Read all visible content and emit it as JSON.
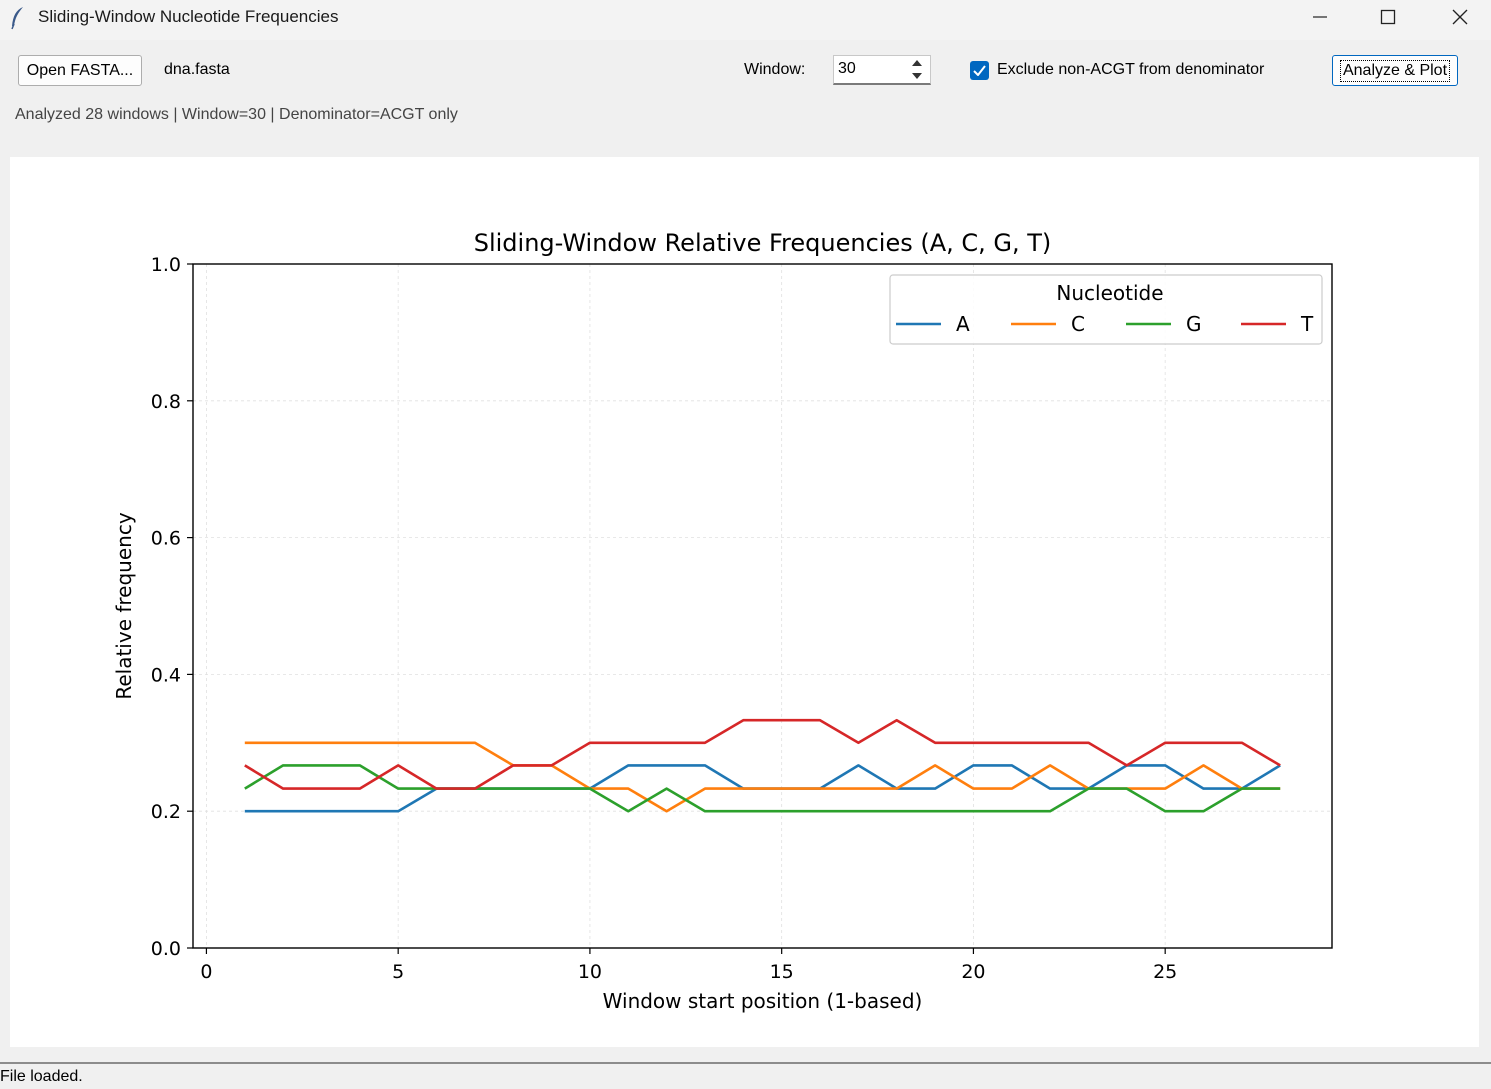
{
  "window": {
    "title": "Sliding-Window Nucleotide Frequencies",
    "minimize_glyph": "—",
    "maximize_glyph": "☐",
    "close_glyph": "✕"
  },
  "toolbar": {
    "open_label": "Open FASTA...",
    "filename": "dna.fasta",
    "window_label": "Window:",
    "window_value": "30",
    "exclude_checked": true,
    "exclude_label": "Exclude non-ACGT from denominator",
    "analyze_label": "Analyze & Plot",
    "accent_color": "#0067c0"
  },
  "status_line": "Analyzed 28 windows | Window=30 | Denominator=ACGT only",
  "statusbar_text": "File loaded.",
  "chart_data": {
    "type": "line",
    "title": "Sliding-Window Relative Frequencies (A, C, G, T)",
    "xlabel": "Window start position (1-based)",
    "ylabel": "Relative frequency",
    "xlim": [
      -0.35,
      29.35
    ],
    "ylim": [
      0,
      1
    ],
    "xticks": [
      0,
      5,
      10,
      15,
      20,
      25
    ],
    "yticks": [
      0.0,
      0.2,
      0.4,
      0.6,
      0.8,
      1.0
    ],
    "ytick_labels": [
      "0.0",
      "0.2",
      "0.4",
      "0.6",
      "0.8",
      "1.0"
    ],
    "grid": true,
    "legend": {
      "title": "Nucleotide",
      "placement": "top-right",
      "columns": 4
    },
    "x": [
      1,
      2,
      3,
      4,
      5,
      6,
      7,
      8,
      9,
      10,
      11,
      12,
      13,
      14,
      15,
      16,
      17,
      18,
      19,
      20,
      21,
      22,
      23,
      24,
      25,
      26,
      27,
      28
    ],
    "series": [
      {
        "name": "A",
        "color": "#1f77b4",
        "values": [
          0.2,
          0.2,
          0.2,
          0.2,
          0.2,
          0.233,
          0.233,
          0.233,
          0.233,
          0.233,
          0.267,
          0.267,
          0.267,
          0.233,
          0.233,
          0.233,
          0.267,
          0.233,
          0.233,
          0.267,
          0.267,
          0.233,
          0.233,
          0.267,
          0.267,
          0.233,
          0.233,
          0.267
        ]
      },
      {
        "name": "C",
        "color": "#ff7f0e",
        "values": [
          0.3,
          0.3,
          0.3,
          0.3,
          0.3,
          0.3,
          0.3,
          0.267,
          0.267,
          0.233,
          0.233,
          0.2,
          0.233,
          0.233,
          0.233,
          0.233,
          0.233,
          0.233,
          0.267,
          0.233,
          0.233,
          0.267,
          0.233,
          0.233,
          0.233,
          0.267,
          0.233,
          0.233
        ]
      },
      {
        "name": "G",
        "color": "#2ca02c",
        "values": [
          0.233,
          0.267,
          0.267,
          0.267,
          0.233,
          0.233,
          0.233,
          0.233,
          0.233,
          0.233,
          0.2,
          0.233,
          0.2,
          0.2,
          0.2,
          0.2,
          0.2,
          0.2,
          0.2,
          0.2,
          0.2,
          0.2,
          0.233,
          0.233,
          0.2,
          0.2,
          0.233,
          0.233
        ]
      },
      {
        "name": "T",
        "color": "#d62728",
        "values": [
          0.267,
          0.233,
          0.233,
          0.233,
          0.267,
          0.233,
          0.233,
          0.267,
          0.267,
          0.3,
          0.3,
          0.3,
          0.3,
          0.333,
          0.333,
          0.333,
          0.3,
          0.333,
          0.3,
          0.3,
          0.3,
          0.3,
          0.3,
          0.267,
          0.3,
          0.3,
          0.3,
          0.267
        ]
      }
    ]
  }
}
